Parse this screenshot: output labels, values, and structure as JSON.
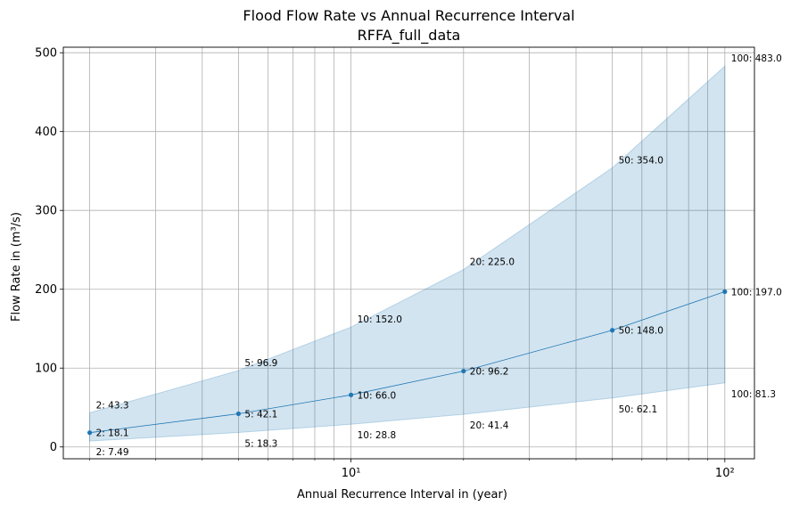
{
  "chart_data": {
    "type": "line",
    "title": "Flood Flow Rate vs Annual Recurrence Interval",
    "subtitle": "RFFA_full_data",
    "xlabel": "Annual Recurrence Interval in (year)",
    "ylabel": "Flow Rate in (m³/s)",
    "xscale": "log",
    "xlim": [
      1.7,
      120
    ],
    "ylim": [
      -15,
      507
    ],
    "grid": true,
    "x_ticks": [
      10,
      100
    ],
    "x_tick_labels": [
      "10¹",
      "10²"
    ],
    "y_ticks": [
      0,
      100,
      200,
      300,
      400,
      500
    ],
    "x": [
      2,
      5,
      10,
      20,
      50,
      100
    ],
    "series": [
      {
        "values": [
          18.1,
          42.1,
          66.0,
          96.2,
          148.0,
          197.0
        ]
      }
    ],
    "band": {
      "upper": [
        43.3,
        96.9,
        152.0,
        225.0,
        354.0,
        483.0
      ],
      "lower": [
        7.49,
        18.3,
        28.8,
        41.4,
        62.1,
        81.3
      ]
    },
    "annotations": {
      "median": [
        "2: 18.1",
        "5: 42.1",
        "10: 66.0",
        "20: 96.2",
        "50: 148.0",
        "100: 197.0"
      ],
      "upper": [
        "2: 43.3",
        "5: 96.9",
        "10: 152.0",
        "20: 225.0",
        "50: 354.0",
        "100: 483.0"
      ],
      "lower": [
        "2: 7.49",
        "5: 18.3",
        "10: 28.8",
        "20: 41.4",
        "50: 62.1",
        "100: 81.3"
      ]
    },
    "colors": {
      "line": "#1f77b4",
      "band": "#1f77b4",
      "grid": "#b0b0b0"
    }
  }
}
